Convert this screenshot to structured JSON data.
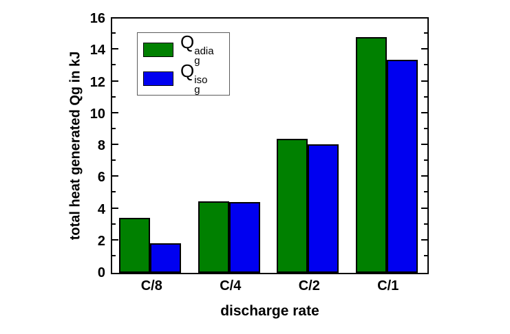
{
  "chart_data": {
    "type": "bar",
    "title": "",
    "xlabel": "discharge rate",
    "ylabel": "total heat generated Qg in kJ",
    "categories": [
      "C/8",
      "C/4",
      "C/2",
      "C/1"
    ],
    "series": [
      {
        "name": "Qg adia",
        "label_base": "Q",
        "label_sup": "adia",
        "label_sub": "g",
        "color": "#008000",
        "values": [
          3.45,
          4.5,
          8.45,
          14.85
        ]
      },
      {
        "name": "Qg iso",
        "label_base": "Q",
        "label_sup": "iso",
        "label_sub": "g",
        "color": "#0000f0",
        "values": [
          1.85,
          4.45,
          8.1,
          13.4
        ]
      }
    ],
    "ylim": [
      0,
      16
    ],
    "ytick_step": 2,
    "yminor_step": 1,
    "y_ticklabels": [
      "0",
      "2",
      "4",
      "6",
      "8",
      "10",
      "12",
      "14",
      "16"
    ],
    "legend_position": "upper-left",
    "grid": false,
    "axis_color": "#000000",
    "bar_edge_color": "#000000",
    "background": "#ffffff"
  }
}
